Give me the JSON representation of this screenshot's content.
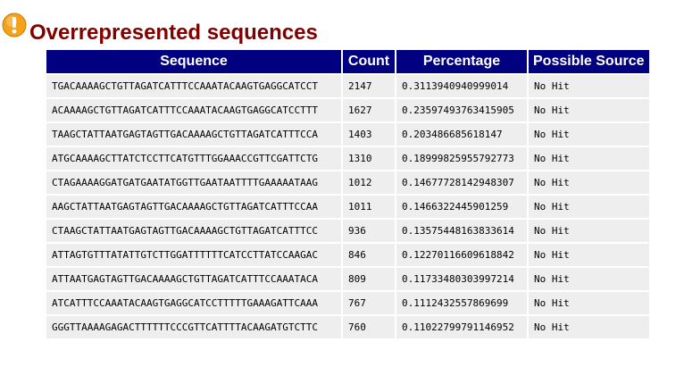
{
  "icon": "warning-icon",
  "title": "Overrepresented sequences",
  "colors": {
    "title": "#800000",
    "header_bg": "#000080",
    "header_text": "#ffffff",
    "cell_bg": "#eeeeee",
    "icon": "#f5a21b"
  },
  "table": {
    "headers": [
      "Sequence",
      "Count",
      "Percentage",
      "Possible Source"
    ],
    "rows": [
      {
        "sequence": "TGACAAAAGCTGTTAGATCATTTCCAAATACAAGTGAGGCATCCT",
        "count": "2147",
        "percentage": "0.3113940940999014",
        "source": "No Hit"
      },
      {
        "sequence": "ACAAAAGCTGTTAGATCATTTCCAAATACAAGTGAGGCATCCTTT",
        "count": "1627",
        "percentage": "0.23597493763415905",
        "source": "No Hit"
      },
      {
        "sequence": "TAAGCTATTAATGAGTAGTTGACAAAAGCTGTTAGATCATTTCCA",
        "count": "1403",
        "percentage": "0.203486685618147",
        "source": "No Hit"
      },
      {
        "sequence": "ATGCAAAAGCTTATCTCCTTCATGTTTGGAAACCGTTCGATTCTG",
        "count": "1310",
        "percentage": "0.18999825955792773",
        "source": "No Hit"
      },
      {
        "sequence": "CTAGAAAAGGATGATGAATATGGTTGAATAATTTTGAAAAATAAG",
        "count": "1012",
        "percentage": "0.14677728142948307",
        "source": "No Hit"
      },
      {
        "sequence": "AAGCTATTAATGAGTAGTTGACAAAAGCTGTTAGATCATTTCCAA",
        "count": "1011",
        "percentage": "0.1466322445901259",
        "source": "No Hit"
      },
      {
        "sequence": "CTAAGCTATTAATGAGTAGTTGACAAAAGCTGTTAGATCATTTCC",
        "count": "936",
        "percentage": "0.13575448163833614",
        "source": "No Hit"
      },
      {
        "sequence": "ATTAGTGTTTATATTGTCTTGGATTTTTTCATCCTTATCCAAGAC",
        "count": "846",
        "percentage": "0.12270116609618842",
        "source": "No Hit"
      },
      {
        "sequence": "ATTAATGAGTAGTTGACAAAAGCTGTTAGATCATTTCCAAATACA",
        "count": "809",
        "percentage": "0.11733480303997214",
        "source": "No Hit"
      },
      {
        "sequence": "ATCATTTCCAAATACAAGTGAGGCATCCTTTTTGAAAGATTCAAA",
        "count": "767",
        "percentage": "0.1112432557869699",
        "source": "No Hit"
      },
      {
        "sequence": "GGGTTAAAAGAGACTTTTTTCCCGTTCATTTTACAAGATGTCTTC",
        "count": "760",
        "percentage": "0.11022799791146952",
        "source": "No Hit"
      }
    ]
  }
}
